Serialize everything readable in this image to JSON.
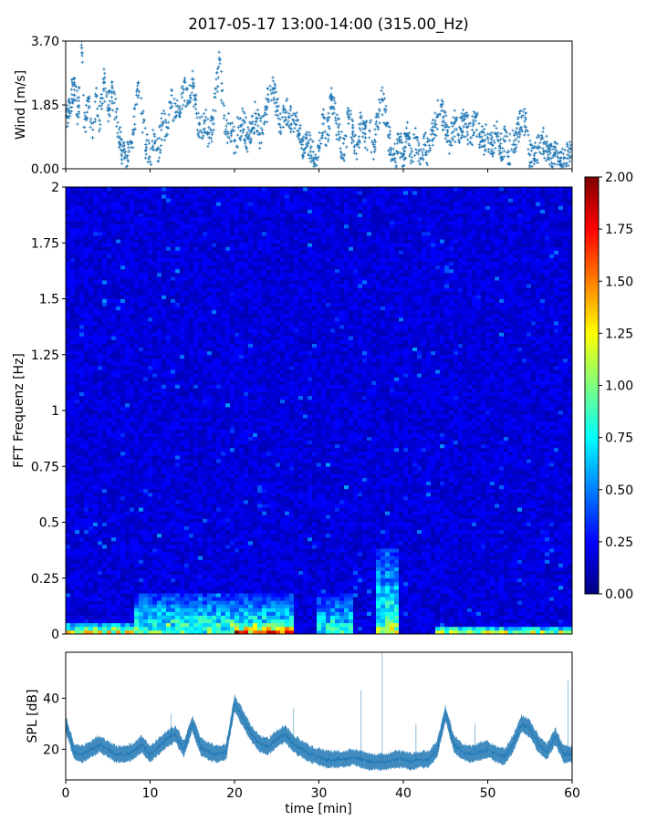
{
  "chart_data": [
    {
      "type": "scatter",
      "title": "2017-05-17 13:00-14:00 (315.00_Hz)",
      "ylabel": "Wind [m/s]",
      "xlim": [
        0,
        60
      ],
      "ylim": [
        0,
        3.7
      ],
      "yticks": [
        0.0,
        1.85,
        3.7
      ],
      "ytick_labels": [
        "0.00",
        "1.85",
        "3.70"
      ],
      "marker": "plus",
      "color": "#1f77b4",
      "x_unit": "min",
      "points": [
        [
          0.0,
          1.2
        ],
        [
          0.5,
          1.9
        ],
        [
          1.0,
          2.5
        ],
        [
          1.5,
          1.5
        ],
        [
          1.9,
          3.5
        ],
        [
          2.2,
          1.2
        ],
        [
          2.8,
          1.8
        ],
        [
          3.2,
          0.9
        ],
        [
          3.6,
          2.1
        ],
        [
          4.0,
          1.4
        ],
        [
          4.5,
          2.6
        ],
        [
          5.0,
          1.7
        ],
        [
          5.5,
          2.2
        ],
        [
          6.0,
          1.5
        ],
        [
          6.5,
          0.7
        ],
        [
          7.0,
          0.3
        ],
        [
          7.5,
          0.5
        ],
        [
          8.0,
          1.0
        ],
        [
          8.6,
          2.5
        ],
        [
          9.0,
          1.6
        ],
        [
          9.5,
          0.7
        ],
        [
          10.0,
          0.2
        ],
        [
          10.5,
          1.0
        ],
        [
          11.0,
          0.6
        ],
        [
          11.5,
          1.3
        ],
        [
          12.0,
          1.0
        ],
        [
          12.5,
          1.9
        ],
        [
          13.0,
          1.5
        ],
        [
          13.5,
          1.8
        ],
        [
          14.0,
          2.3
        ],
        [
          14.5,
          1.9
        ],
        [
          15.0,
          2.6
        ],
        [
          15.5,
          1.6
        ],
        [
          16.0,
          1.1
        ],
        [
          16.5,
          1.4
        ],
        [
          17.0,
          0.9
        ],
        [
          17.5,
          1.3
        ],
        [
          18.2,
          3.2
        ],
        [
          18.6,
          1.9
        ],
        [
          19.0,
          1.0
        ],
        [
          19.5,
          1.3
        ],
        [
          20.0,
          0.8
        ],
        [
          20.5,
          1.2
        ],
        [
          21.0,
          1.4
        ],
        [
          21.5,
          0.9
        ],
        [
          22.0,
          1.1
        ],
        [
          22.5,
          1.6
        ],
        [
          23.0,
          1.0
        ],
        [
          23.5,
          1.3
        ],
        [
          24.0,
          2.0
        ],
        [
          24.6,
          2.3
        ],
        [
          25.0,
          1.8
        ],
        [
          25.5,
          1.2
        ],
        [
          26.0,
          1.7
        ],
        [
          26.5,
          1.5
        ],
        [
          27.0,
          1.4
        ],
        [
          27.5,
          1.1
        ],
        [
          28.0,
          0.7
        ],
        [
          28.5,
          0.9
        ],
        [
          29.0,
          0.5
        ],
        [
          29.5,
          0.3
        ],
        [
          30.0,
          0.6
        ],
        [
          30.5,
          1.3
        ],
        [
          31.0,
          1.0
        ],
        [
          31.5,
          2.1
        ],
        [
          32.0,
          1.4
        ],
        [
          32.5,
          0.9
        ],
        [
          33.0,
          0.4
        ],
        [
          33.5,
          1.5
        ],
        [
          34.0,
          1.0
        ],
        [
          34.5,
          0.7
        ],
        [
          35.0,
          1.3
        ],
        [
          35.5,
          0.9
        ],
        [
          36.0,
          1.1
        ],
        [
          36.5,
          0.7
        ],
        [
          37.0,
          1.5
        ],
        [
          37.5,
          2.0
        ],
        [
          38.0,
          1.3
        ],
        [
          38.5,
          0.6
        ],
        [
          39.0,
          0.3
        ],
        [
          39.5,
          0.8
        ],
        [
          40.0,
          0.4
        ],
        [
          40.5,
          1.0
        ],
        [
          41.0,
          0.5
        ],
        [
          41.5,
          0.9
        ],
        [
          42.0,
          0.3
        ],
        [
          42.5,
          0.7
        ],
        [
          43.0,
          0.5
        ],
        [
          43.5,
          1.1
        ],
        [
          44.0,
          1.5
        ],
        [
          44.5,
          1.8
        ],
        [
          45.0,
          1.2
        ],
        [
          45.5,
          0.8
        ],
        [
          46.0,
          1.3
        ],
        [
          46.5,
          1.0
        ],
        [
          47.0,
          1.4
        ],
        [
          47.5,
          1.2
        ],
        [
          48.0,
          0.9
        ],
        [
          48.5,
          1.5
        ],
        [
          49.0,
          1.0
        ],
        [
          49.5,
          0.8
        ],
        [
          50.0,
          0.9
        ],
        [
          50.5,
          0.7
        ],
        [
          51.0,
          1.0
        ],
        [
          51.5,
          0.6
        ],
        [
          52.0,
          0.8
        ],
        [
          52.5,
          0.5
        ],
        [
          53.0,
          0.7
        ],
        [
          53.5,
          1.0
        ],
        [
          54.0,
          1.5
        ],
        [
          54.5,
          1.2
        ],
        [
          55.0,
          0.4
        ],
        [
          55.5,
          0.3
        ],
        [
          56.0,
          0.6
        ],
        [
          56.5,
          0.9
        ],
        [
          57.0,
          0.5
        ],
        [
          57.5,
          0.3
        ],
        [
          58.0,
          0.4
        ],
        [
          58.5,
          0.2
        ],
        [
          59.0,
          0.3
        ],
        [
          59.5,
          0.4
        ],
        [
          60.0,
          0.3
        ]
      ]
    },
    {
      "type": "heatmap",
      "ylabel": "FFT Frequenz [Hz]",
      "xlim": [
        0,
        60
      ],
      "ylim": [
        0,
        2
      ],
      "yticks": [
        0,
        0.25,
        0.5,
        0.75,
        1,
        1.25,
        1.5,
        1.75,
        2
      ],
      "ytick_labels": [
        "0",
        "0.25",
        "0.5",
        "0.75",
        "1",
        "1.25",
        "1.5",
        "1.75",
        "2"
      ],
      "colormap": "jet",
      "colorbar": {
        "range": [
          0.0,
          2.0
        ],
        "ticks": [
          0.0,
          0.25,
          0.5,
          0.75,
          1.0,
          1.25,
          1.5,
          1.75,
          2.0
        ],
        "tick_labels": [
          "0.00",
          "0.25",
          "0.50",
          "0.75",
          "1.00",
          "1.25",
          "1.50",
          "1.75",
          "2.00"
        ],
        "placement": "right"
      },
      "background_level": 0.18,
      "low_frequency_energy": [
        {
          "x_range": [
            0,
            8
          ],
          "max_freq": 0.05,
          "level": 1.4
        },
        {
          "x_range": [
            8,
            27
          ],
          "max_freq": 0.18,
          "level": 1.0
        },
        {
          "x_range": [
            20,
            27
          ],
          "max_freq": 0.05,
          "level": 1.9
        },
        {
          "x_range": [
            30,
            34
          ],
          "max_freq": 0.18,
          "level": 0.9
        },
        {
          "x_range": [
            36.5,
            39.5
          ],
          "max_freq": 0.38,
          "level": 1.0
        },
        {
          "x_range": [
            36.5,
            39.5
          ],
          "max_freq": 0.12,
          "level": 1.3
        },
        {
          "x_range": [
            44,
            60
          ],
          "max_freq": 0.04,
          "level": 1.3
        }
      ]
    },
    {
      "type": "line",
      "xlabel": "time [min]",
      "ylabel": "SPL [dB]",
      "xlim": [
        0,
        60
      ],
      "ylim": [
        8,
        58
      ],
      "xticks": [
        0,
        10,
        20,
        30,
        40,
        50,
        60
      ],
      "xtick_labels": [
        "0",
        "10",
        "20",
        "30",
        "40",
        "50",
        "60"
      ],
      "yticks": [
        20,
        40
      ],
      "ytick_labels": [
        "20",
        "40"
      ],
      "color": "#1f77b4",
      "x": [
        0,
        1,
        2,
        3,
        4,
        5,
        6,
        7,
        8,
        9,
        10,
        11,
        12,
        13,
        14,
        15,
        16,
        17,
        18,
        19,
        20,
        21,
        22,
        23,
        24,
        25,
        26,
        27,
        28,
        29,
        30,
        31,
        32,
        33,
        34,
        35,
        36,
        37,
        38,
        39,
        40,
        41,
        42,
        43,
        44,
        45,
        46,
        47,
        48,
        49,
        50,
        51,
        52,
        53,
        54,
        55,
        56,
        57,
        58,
        59,
        60
      ],
      "y": [
        30,
        19,
        18,
        20,
        22,
        20,
        18,
        18,
        19,
        22,
        18,
        21,
        24,
        26,
        20,
        30,
        21,
        19,
        18,
        19,
        38,
        32,
        26,
        22,
        21,
        24,
        26,
        22,
        20,
        18,
        17,
        16,
        16,
        16,
        17,
        16,
        15,
        15,
        15,
        16,
        16,
        15,
        16,
        16,
        20,
        34,
        22,
        19,
        18,
        19,
        20,
        18,
        17,
        22,
        30,
        28,
        22,
        19,
        25,
        18,
        18
      ]
    }
  ]
}
